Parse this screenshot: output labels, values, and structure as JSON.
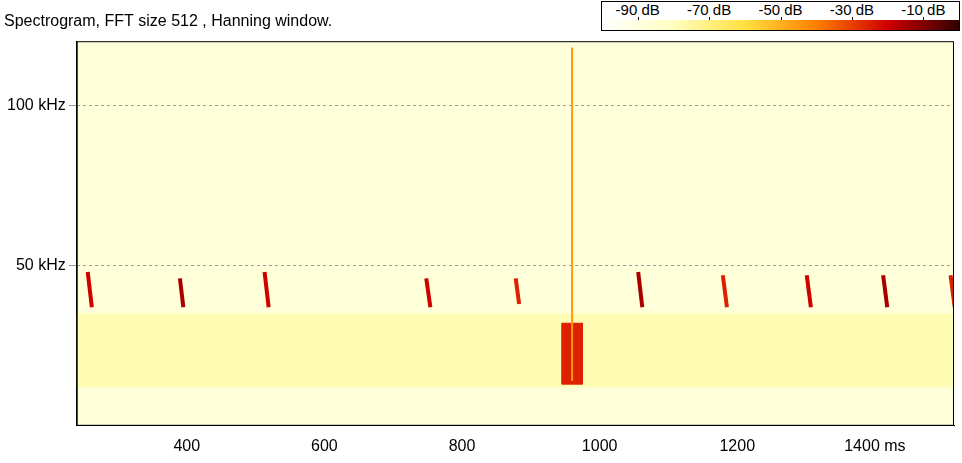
{
  "chart_data": {
    "type": "spectrogram",
    "title": "Spectrogram, FFT size 512 , Hanning window.",
    "xlim": [
      240,
      1515
    ],
    "xticks": [
      400,
      600,
      800,
      1000,
      1200,
      {
        "value": 1400,
        "label": "1400 ms"
      }
    ],
    "ylim": [
      0,
      120
    ],
    "yticks": [
      {
        "value": 50,
        "label": "50 kHz"
      },
      {
        "value": 100,
        "label": "100 kHz"
      }
    ],
    "grid": true,
    "colorbar": {
      "range": [
        -100,
        0
      ],
      "ticks": [
        {
          "value": -90,
          "label": "-90 dB"
        },
        {
          "value": -70,
          "label": "-70 dB"
        },
        {
          "value": -50,
          "label": "-50 dB"
        },
        {
          "value": -30,
          "label": "-30 dB"
        },
        {
          "value": -10,
          "label": "-10 dB"
        }
      ],
      "colors": [
        "#ffffff",
        "#ffffc0",
        "#ffe040",
        "#ff8000",
        "#d00000",
        "#300000"
      ]
    },
    "noise_floor_db": -88,
    "noise_band": {
      "f_low_khz": 12,
      "f_high_khz": 35,
      "level_db": -78
    },
    "calls": [
      {
        "start_ms": 256,
        "end_ms": 262,
        "f_start_khz": 48,
        "f_end_khz": 37,
        "level_db": -20
      },
      {
        "start_ms": 390,
        "end_ms": 395,
        "f_start_khz": 46,
        "f_end_khz": 37,
        "level_db": -15
      },
      {
        "start_ms": 513,
        "end_ms": 519,
        "f_start_khz": 48,
        "f_end_khz": 37,
        "level_db": -20
      },
      {
        "start_ms": 748,
        "end_ms": 754,
        "f_start_khz": 46,
        "f_end_khz": 37,
        "level_db": -20
      },
      {
        "start_ms": 878,
        "end_ms": 883,
        "f_start_khz": 46,
        "f_end_khz": 38,
        "level_db": -25
      },
      {
        "start_ms": 1056,
        "end_ms": 1062,
        "f_start_khz": 48,
        "f_end_khz": 37,
        "level_db": -15
      },
      {
        "start_ms": 1179,
        "end_ms": 1185,
        "f_start_khz": 47,
        "f_end_khz": 37,
        "level_db": -25
      },
      {
        "start_ms": 1301,
        "end_ms": 1307,
        "f_start_khz": 47,
        "f_end_khz": 37,
        "level_db": -20
      },
      {
        "start_ms": 1412,
        "end_ms": 1418,
        "f_start_khz": 47,
        "f_end_khz": 37,
        "level_db": -15
      },
      {
        "start_ms": 1510,
        "end_ms": 1516,
        "f_start_khz": 47,
        "f_end_khz": 37,
        "level_db": -25
      }
    ],
    "click": {
      "time_ms": 960,
      "f_low_khz": 14,
      "f_high_khz": 118,
      "level_db": -45
    },
    "burst": {
      "start_ms": 945,
      "end_ms": 975,
      "f_low_khz": 13,
      "f_high_khz": 32,
      "level_db": -25
    }
  }
}
